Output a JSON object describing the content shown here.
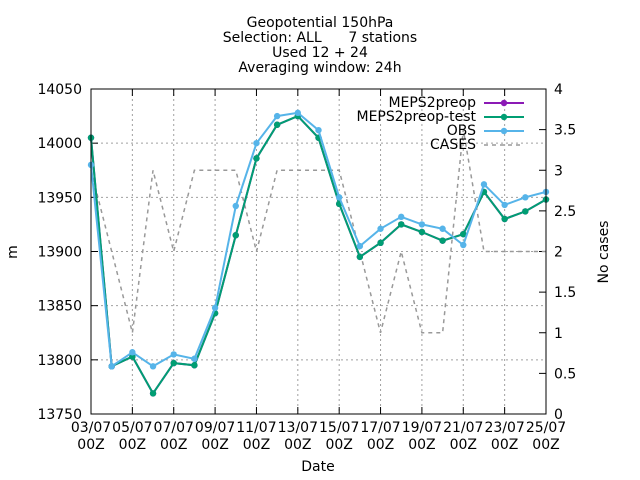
{
  "chart_data": {
    "type": "line",
    "title_lines": [
      "Geopotential 150hPa",
      "Selection: ALL      7 stations",
      "Used 12 + 24",
      "Averaging window: 24h"
    ],
    "xlabel": "Date",
    "ylabel": "m",
    "y2label": "No cases",
    "ylim": [
      13750,
      14050
    ],
    "y2lim": [
      0,
      4
    ],
    "yticks": [
      13750,
      13800,
      13850,
      13900,
      13950,
      14000,
      14050
    ],
    "y2ticks": [
      "0",
      "0.5",
      "1",
      "1.5",
      "2",
      "2.5",
      "3",
      "3.5",
      "4"
    ],
    "x_ticks": [
      {
        "l1": "03/07",
        "l2": "00Z"
      },
      {
        "l1": "05/07",
        "l2": "00Z"
      },
      {
        "l1": "07/07",
        "l2": "00Z"
      },
      {
        "l1": "09/07",
        "l2": "00Z"
      },
      {
        "l1": "11/07",
        "l2": "00Z"
      },
      {
        "l1": "13/07",
        "l2": "00Z"
      },
      {
        "l1": "15/07",
        "l2": "00Z"
      },
      {
        "l1": "17/07",
        "l2": "00Z"
      },
      {
        "l1": "19/07",
        "l2": "00Z"
      },
      {
        "l1": "21/07",
        "l2": "00Z"
      },
      {
        "l1": "23/07",
        "l2": "00Z"
      },
      {
        "l1": "25/07",
        "l2": "00Z"
      }
    ],
    "grid": true,
    "legend_position": "top-right",
    "series": [
      {
        "name": "MEPS2preop",
        "color": "#8b1ab5",
        "axis": "y1",
        "style": "line-points",
        "x": [
          0,
          1,
          2,
          3,
          4,
          5,
          6,
          7,
          8,
          9,
          10,
          11,
          12,
          13,
          14,
          15,
          16,
          17,
          18,
          19,
          20,
          21,
          22
        ],
        "y": [
          14005,
          13794,
          13803,
          13769,
          13797,
          13795,
          13843,
          13915,
          13986,
          14017,
          14025,
          14005,
          13944,
          13895,
          13908,
          13925,
          13918,
          13910,
          13916,
          13955,
          13930,
          13937,
          13948
        ]
      },
      {
        "name": "MEPS2preop-test",
        "color": "#009e73",
        "axis": "y1",
        "style": "line-points",
        "x": [
          0,
          1,
          2,
          3,
          4,
          5,
          6,
          7,
          8,
          9,
          10,
          11,
          12,
          13,
          14,
          15,
          16,
          17,
          18,
          19,
          20,
          21,
          22
        ],
        "y": [
          14005,
          13794,
          13803,
          13769,
          13797,
          13795,
          13843,
          13915,
          13986,
          14017,
          14025,
          14005,
          13944,
          13895,
          13908,
          13925,
          13918,
          13910,
          13916,
          13955,
          13930,
          13937,
          13948
        ]
      },
      {
        "name": "OBS",
        "color": "#56b4e9",
        "axis": "y1",
        "style": "line-points",
        "x": [
          0,
          1,
          2,
          3,
          4,
          5,
          6,
          7,
          8,
          9,
          10,
          11,
          12,
          13,
          14,
          15,
          16,
          17,
          18,
          19,
          20,
          21,
          22
        ],
        "y": [
          13980,
          13794,
          13807,
          13794,
          13805,
          13801,
          13848,
          13942,
          14000,
          14025,
          14028,
          14012,
          13950,
          13905,
          13921,
          13932,
          13925,
          13921,
          13906,
          13962,
          13943,
          13950,
          13955
        ]
      },
      {
        "name": "CASES",
        "color": "#999999",
        "axis": "y2",
        "style": "dashed",
        "x": [
          0,
          1,
          2,
          3,
          4,
          5,
          6,
          7,
          8,
          9,
          10,
          11,
          12,
          13,
          14,
          15,
          16,
          17,
          18,
          19,
          20,
          21,
          22
        ],
        "y": [
          3,
          2,
          1,
          3,
          2,
          3,
          3,
          3,
          2,
          3,
          3,
          3,
          3,
          2,
          1,
          2,
          1,
          1,
          3.5,
          2,
          2,
          2,
          2
        ]
      }
    ]
  }
}
